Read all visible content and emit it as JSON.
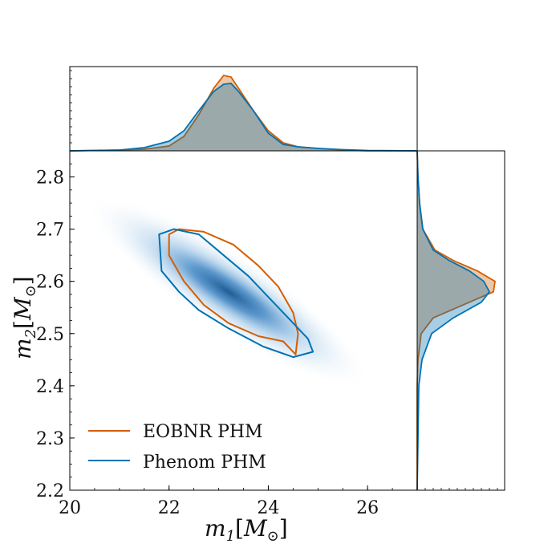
{
  "chart_data": {
    "type": "corner",
    "series": [
      {
        "name": "EOBNR PHM",
        "color": "#d55e00"
      },
      {
        "name": "Phenom PHM",
        "color": "#0072b2"
      }
    ],
    "joint": {
      "xlabel_main": "m",
      "xlabel_sub": "1",
      "xlabel_unit_main": "M",
      "xlabel_unit_sub": "⊙",
      "ylabel_main": "m",
      "ylabel_sub": "2",
      "ylabel_unit_main": "M",
      "ylabel_unit_sub": "⊙",
      "xlim": [
        20,
        27
      ],
      "ylim": [
        2.2,
        2.85
      ],
      "xticks": [
        "20",
        "22",
        "24",
        "26"
      ],
      "xtick_values": [
        20,
        22,
        24,
        26
      ],
      "yticks": [
        "2.2",
        "2.3",
        "2.4",
        "2.5",
        "2.6",
        "2.7",
        "2.8"
      ],
      "ytick_values": [
        2.2,
        2.3,
        2.4,
        2.5,
        2.6,
        2.7,
        2.8
      ],
      "density_center": [
        23.2,
        2.58
      ],
      "contours": {
        "EOBNR PHM": [
          [
            22.0,
            2.69
          ],
          [
            22.2,
            2.7
          ],
          [
            22.7,
            2.695
          ],
          [
            23.3,
            2.67
          ],
          [
            23.8,
            2.63
          ],
          [
            24.2,
            2.59
          ],
          [
            24.5,
            2.54
          ],
          [
            24.6,
            2.5
          ],
          [
            24.55,
            2.46
          ],
          [
            24.3,
            2.485
          ],
          [
            23.8,
            2.495
          ],
          [
            23.2,
            2.52
          ],
          [
            22.7,
            2.555
          ],
          [
            22.3,
            2.6
          ],
          [
            22.0,
            2.65
          ],
          [
            22.0,
            2.69
          ]
        ],
        "Phenom PHM": [
          [
            21.8,
            2.69
          ],
          [
            22.1,
            2.7
          ],
          [
            22.6,
            2.69
          ],
          [
            23.1,
            2.65
          ],
          [
            23.6,
            2.61
          ],
          [
            24.0,
            2.57
          ],
          [
            24.4,
            2.53
          ],
          [
            24.8,
            2.49
          ],
          [
            24.9,
            2.465
          ],
          [
            24.5,
            2.455
          ],
          [
            23.9,
            2.475
          ],
          [
            23.2,
            2.51
          ],
          [
            22.6,
            2.545
          ],
          [
            22.2,
            2.58
          ],
          [
            21.85,
            2.62
          ],
          [
            21.8,
            2.69
          ]
        ]
      }
    },
    "marginal_x": {
      "x": [
        20.0,
        20.5,
        21.0,
        21.5,
        22.0,
        22.3,
        22.6,
        22.9,
        23.1,
        23.25,
        23.4,
        23.7,
        24.0,
        24.3,
        24.6,
        25.0,
        25.5,
        26.0,
        27.0
      ],
      "series": [
        {
          "name": "EOBNR PHM",
          "values": [
            0.0,
            0.005,
            0.01,
            0.02,
            0.06,
            0.18,
            0.45,
            0.78,
            0.94,
            0.92,
            0.78,
            0.5,
            0.25,
            0.1,
            0.05,
            0.03,
            0.01,
            0.0,
            0.0
          ]
        },
        {
          "name": "Phenom PHM",
          "values": [
            0.0,
            0.005,
            0.01,
            0.04,
            0.12,
            0.25,
            0.5,
            0.74,
            0.83,
            0.84,
            0.74,
            0.5,
            0.22,
            0.08,
            0.05,
            0.03,
            0.015,
            0.005,
            0.0
          ]
        }
      ]
    },
    "marginal_y": {
      "y": [
        2.2,
        2.4,
        2.45,
        2.5,
        2.53,
        2.56,
        2.58,
        2.6,
        2.62,
        2.64,
        2.66,
        2.7,
        2.75,
        2.8,
        2.85
      ],
      "series": [
        {
          "name": "EOBNR PHM",
          "values": [
            0.0,
            0.0,
            0.01,
            0.05,
            0.2,
            0.65,
            0.95,
            0.97,
            0.75,
            0.45,
            0.22,
            0.07,
            0.03,
            0.01,
            0.0
          ]
        },
        {
          "name": "Phenom PHM",
          "values": [
            0.0,
            0.02,
            0.06,
            0.18,
            0.45,
            0.8,
            0.9,
            0.83,
            0.65,
            0.4,
            0.2,
            0.07,
            0.03,
            0.01,
            0.0
          ]
        }
      ]
    }
  }
}
